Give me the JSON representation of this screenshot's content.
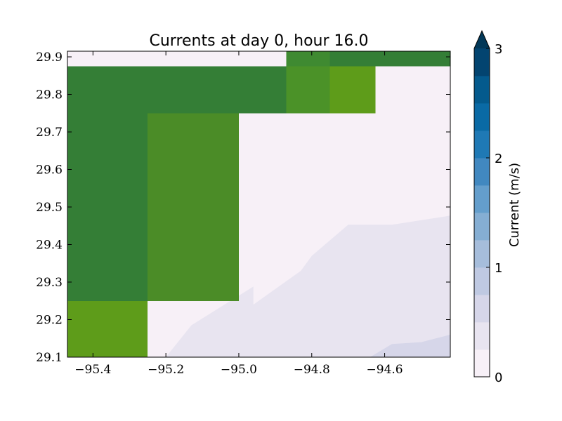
{
  "chart_data": {
    "type": "heatmap",
    "title": "Currents at day 0, hour 16.0",
    "xlabel": "",
    "ylabel": "",
    "xlim": [
      -95.47,
      -94.42
    ],
    "ylim": [
      29.1,
      29.915
    ],
    "x_ticks": [
      -95.4,
      -95.2,
      -95.0,
      -94.8,
      -94.6
    ],
    "x_tick_labels": [
      "−95.4",
      "−95.2",
      "−95.0",
      "−94.8",
      "−94.6"
    ],
    "y_ticks": [
      29.1,
      29.2,
      29.3,
      29.4,
      29.5,
      29.6,
      29.7,
      29.8,
      29.9
    ],
    "y_tick_labels": [
      "29.1",
      "29.2",
      "29.3",
      "29.4",
      "29.5",
      "29.6",
      "29.7",
      "29.8",
      "29.9"
    ],
    "background_color": "#f7f0f7",
    "land_cells": [
      {
        "x": [
          -95.47,
          -94.87
        ],
        "y": [
          29.75,
          29.875
        ],
        "color": "#347e36"
      },
      {
        "x": [
          -95.47,
          -95.25
        ],
        "y": [
          29.25,
          29.75
        ],
        "color": "#347e36"
      },
      {
        "x": [
          -94.87,
          -94.75
        ],
        "y": [
          29.75,
          29.875
        ],
        "color": "#4b9228"
      },
      {
        "x": [
          -94.75,
          -94.625
        ],
        "y": [
          29.75,
          29.875
        ],
        "color": "#5e9c1a"
      },
      {
        "x": [
          -94.87,
          -94.75
        ],
        "y": [
          29.875,
          29.915
        ],
        "color": "#3f8a31"
      },
      {
        "x": [
          -94.75,
          -94.42
        ],
        "y": [
          29.875,
          29.915
        ],
        "color": "#347e36"
      },
      {
        "x": [
          -95.25,
          -95.0
        ],
        "y": [
          29.25,
          29.75
        ],
        "color": "#4b8c27"
      },
      {
        "x": [
          -95.47,
          -95.25
        ],
        "y": [
          29.1,
          29.25
        ],
        "color": "#5e9c1a"
      }
    ],
    "contour_regions": [
      {
        "level": "0.25-0.5",
        "color": "#e8e4f0",
        "points": [
          [
            -95.2,
            29.1
          ],
          [
            -95.13,
            29.185
          ],
          [
            -94.96,
            29.288
          ],
          [
            -94.96,
            29.24
          ],
          [
            -94.83,
            29.33
          ],
          [
            -94.8,
            29.37
          ],
          [
            -94.7,
            29.453
          ],
          [
            -94.58,
            29.453
          ],
          [
            -94.42,
            29.477
          ],
          [
            -94.42,
            29.1
          ]
        ]
      },
      {
        "level": "0.5-0.75",
        "color": "#d6d6e9",
        "points": [
          [
            -94.64,
            29.1
          ],
          [
            -94.58,
            29.135
          ],
          [
            -94.5,
            29.14
          ],
          [
            -94.42,
            29.16
          ],
          [
            -94.42,
            29.1
          ]
        ]
      }
    ],
    "colorbar": {
      "label": "Current (m/s)",
      "min": 0,
      "max": 3,
      "ticks": [
        0,
        1,
        2,
        3
      ],
      "tick_labels": [
        "0",
        "1",
        "2",
        "3"
      ],
      "extend": "max",
      "colors": [
        "#f7f0f7",
        "#e8e4f0",
        "#d6d6e9",
        "#bfc9e2",
        "#a6bddb",
        "#85aed3",
        "#649ecc",
        "#4188c0",
        "#1f79b5",
        "#0a6aa5",
        "#045a8d",
        "#034470"
      ],
      "extend_color": "#023858"
    }
  }
}
